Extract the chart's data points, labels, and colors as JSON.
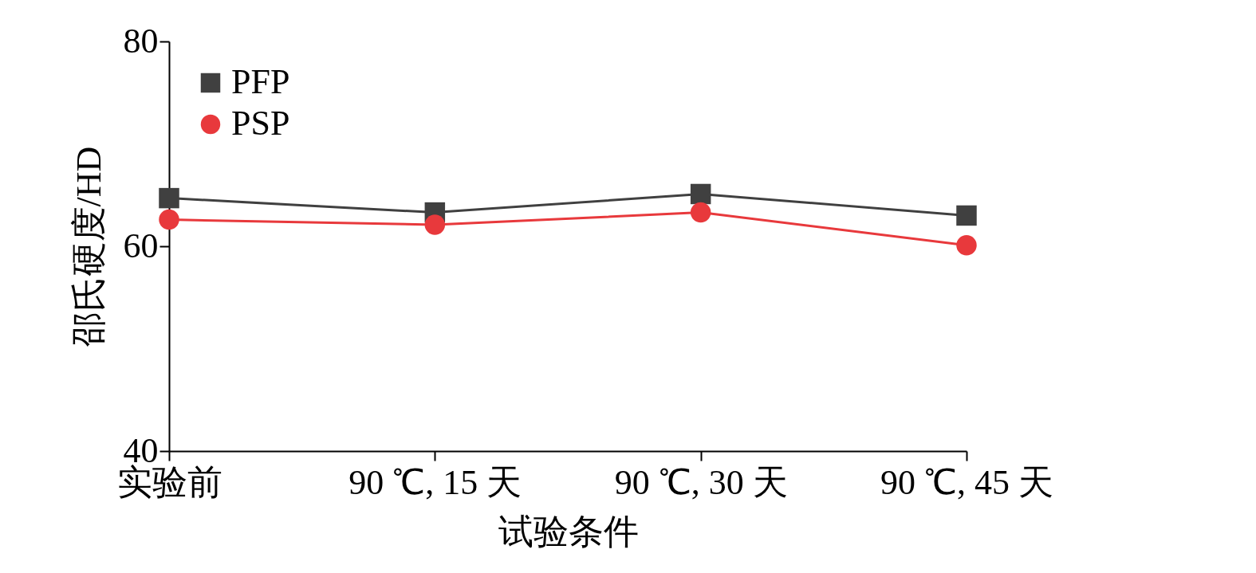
{
  "chart_data": {
    "type": "line",
    "xlabel": "试验条件",
    "ylabel": "邵氏硬度/HD",
    "categories": [
      "实验前",
      "90 ℃, 15 天",
      "90 ℃, 30 天",
      "90 ℃, 45 天"
    ],
    "series": [
      {
        "name": "PFP",
        "color": "#404040",
        "marker": "square",
        "values": [
          64.7,
          63.3,
          65.1,
          63.0
        ]
      },
      {
        "name": "PSP",
        "color": "#e8393c",
        "marker": "circle",
        "values": [
          62.6,
          62.1,
          63.3,
          60.1
        ]
      }
    ],
    "ylim": [
      40,
      80
    ],
    "yticks": [
      40,
      60,
      80
    ],
    "grid": false,
    "legend": "top left",
    "line_style": "solid"
  }
}
